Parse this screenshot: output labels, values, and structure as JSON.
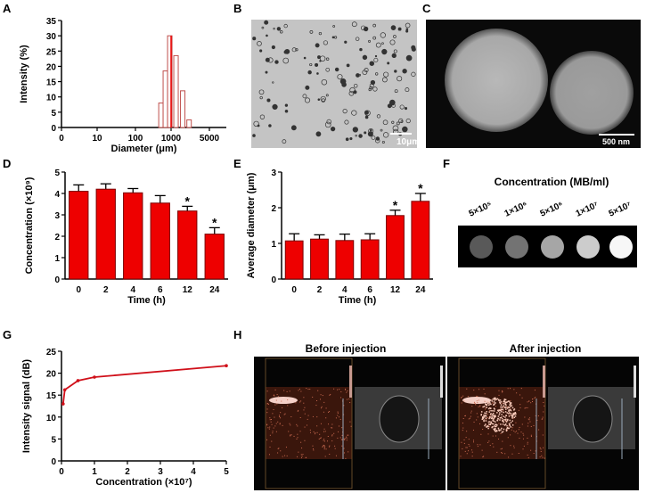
{
  "panels": {
    "A": "A",
    "B": "B",
    "C": "C",
    "D": "D",
    "E": "E",
    "F": "F",
    "G": "G",
    "H": "H"
  },
  "colors": {
    "bar": "#ee0000",
    "bar_edge": "#7a0000",
    "hist_edge": "#c0504d",
    "line": "#d0101a"
  },
  "chart_data": [
    {
      "id": "A",
      "type": "bar",
      "xlabel": "Diameter (μm)",
      "ylabel": "Intensity (%)",
      "x_tick_labels": [
        "0",
        "10",
        "100",
        "1000",
        "5000"
      ],
      "y_tick_labels": [
        "0",
        "5",
        "10",
        "15",
        "20",
        "25",
        "30",
        "35"
      ],
      "ylim": [
        0,
        35
      ],
      "bins": [
        520,
        690,
        920,
        1230,
        1630,
        2130
      ],
      "values": [
        8,
        18.5,
        30,
        23.5,
        12,
        2.5
      ],
      "reference_line_x": 1000
    },
    {
      "id": "D",
      "type": "bar",
      "xlabel": "Time (h)",
      "ylabel": "Concentration (×10⁹)",
      "categories": [
        "0",
        "2",
        "4",
        "6",
        "12",
        "24"
      ],
      "values": [
        4.1,
        4.2,
        4.03,
        3.55,
        3.18,
        2.1
      ],
      "errors": [
        0.3,
        0.25,
        0.2,
        0.35,
        0.22,
        0.3
      ],
      "significance": [
        "",
        "",
        "",
        "",
        "*",
        "*"
      ],
      "y_tick_labels": [
        "0",
        "1",
        "2",
        "3",
        "4",
        "5"
      ],
      "ylim": [
        0,
        5
      ]
    },
    {
      "id": "E",
      "type": "bar",
      "xlabel": "Time (h)",
      "ylabel": "Average diameter (μm)",
      "categories": [
        "0",
        "2",
        "4",
        "6",
        "12",
        "24"
      ],
      "values": [
        1.07,
        1.12,
        1.08,
        1.1,
        1.78,
        2.18
      ],
      "errors": [
        0.2,
        0.12,
        0.18,
        0.17,
        0.15,
        0.22
      ],
      "significance": [
        "",
        "",
        "",
        "",
        "*",
        "*"
      ],
      "y_tick_labels": [
        "0",
        "1",
        "2",
        "3"
      ],
      "ylim": [
        0,
        3
      ]
    },
    {
      "id": "G",
      "type": "line",
      "xlabel": "Concentration (×10⁷)",
      "ylabel": "Intensity signal (dB)",
      "x": [
        0.05,
        0.1,
        0.5,
        1,
        5
      ],
      "y": [
        13,
        16.2,
        18.3,
        19.1,
        21.7
      ],
      "x_tick_labels": [
        "0",
        "1",
        "2",
        "3",
        "4",
        "5"
      ],
      "y_tick_labels": [
        "0",
        "5",
        "10",
        "15",
        "20",
        "25"
      ],
      "xlim": [
        0,
        5
      ],
      "ylim": [
        0,
        25
      ]
    }
  ],
  "panelB": {
    "scale_label": "10μm"
  },
  "panelC": {
    "scale_label": "500 nm"
  },
  "panelF": {
    "title": "Concentration (MB/ml)",
    "labels": [
      "5×10⁵",
      "1×10⁶",
      "5×10⁶",
      "1×10⁷",
      "5×10⁷"
    ],
    "brightness": [
      0.35,
      0.45,
      0.65,
      0.8,
      0.97
    ]
  },
  "panelH": {
    "before": "Before injection",
    "after": "After injection"
  }
}
